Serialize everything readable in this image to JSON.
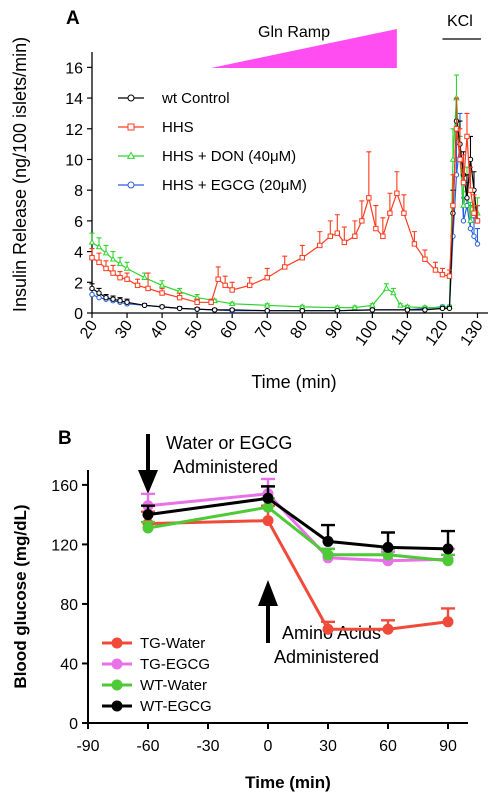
{
  "panels": [
    {
      "label": "A",
      "ramp_label": "Gln Ramp",
      "kcl_label": "KCl",
      "ramp_color": "#ff4df2",
      "chart_data": {
        "type": "line",
        "title": "",
        "xlabel": "Time (min)",
        "ylabel": "Insulin Release (ng/100 islets/min)",
        "xlim": [
          20,
          133
        ],
        "ylim": [
          0,
          17
        ],
        "xticks": [
          20,
          30,
          40,
          50,
          60,
          70,
          80,
          90,
          100,
          110,
          120,
          130
        ],
        "yticks": [
          0,
          2,
          4,
          6,
          8,
          10,
          12,
          14,
          16
        ],
        "grid": false,
        "legend_position": "top-left",
        "annotations": {
          "gln_ramp": {
            "start": 54,
            "end": 107
          },
          "kcl": {
            "start": 120,
            "end": 131
          }
        },
        "series": [
          {
            "name": "wt Control",
            "color": "#000000",
            "marker": "circle",
            "x": [
              20,
              22,
              24,
              26,
              28,
              30,
              35,
              40,
              45,
              50,
              55,
              60,
              70,
              80,
              90,
              100,
              110,
              115,
              120,
              122,
              123,
              124,
              125,
              126,
              127,
              128,
              129,
              130
            ],
            "y": [
              1.6,
              1.3,
              1.0,
              0.9,
              0.8,
              0.7,
              0.5,
              0.4,
              0.3,
              0.25,
              0.2,
              0.2,
              0.15,
              0.15,
              0.15,
              0.2,
              0.2,
              0.2,
              0.3,
              0.3,
              6.5,
              12.5,
              11,
              9,
              7.5,
              10,
              8,
              6
            ],
            "err": [
              0.3,
              0.3,
              0.2,
              0.2,
              0.2,
              0.2,
              0.1,
              0.1,
              0.1,
              0.1,
              0.1,
              0.1,
              0.05,
              0.05,
              0.05,
              0.1,
              0.1,
              0.1,
              0.1,
              0.1,
              1.5,
              1.5,
              1.5,
              1.5,
              1.5,
              1.5,
              1.2,
              1.0
            ]
          },
          {
            "name": "HHS",
            "color": "#ff3b1f",
            "marker": "square",
            "x": [
              20,
              22,
              24,
              26,
              28,
              30,
              33,
              36,
              40,
              45,
              50,
              54,
              56,
              58,
              60,
              65,
              70,
              75,
              80,
              85,
              88,
              90,
              92,
              95,
              97,
              99,
              101,
              103,
              105,
              107,
              109,
              112,
              115,
              118,
              120,
              122,
              123,
              124,
              125,
              126,
              127,
              128,
              129,
              130
            ],
            "y": [
              3.6,
              3.3,
              2.9,
              2.6,
              2.3,
              2.2,
              1.8,
              1.6,
              1.3,
              1.0,
              0.7,
              0.7,
              2.2,
              1.8,
              1.5,
              1.8,
              2.3,
              3.0,
              3.6,
              4.4,
              5.0,
              5.2,
              4.6,
              5.0,
              6.0,
              7.5,
              5.5,
              5.0,
              6.5,
              7.8,
              6.5,
              4.5,
              3.5,
              2.8,
              2.5,
              2.4,
              7.0,
              12.0,
              10.0,
              8.5,
              11.5,
              8.0,
              6.5,
              6.0
            ],
            "err": [
              0.6,
              0.6,
              0.5,
              0.5,
              0.4,
              0.4,
              0.4,
              1.0,
              0.3,
              0.3,
              0.2,
              0.2,
              0.8,
              0.6,
              0.5,
              0.5,
              0.6,
              0.7,
              0.8,
              0.9,
              1.0,
              1.2,
              1.0,
              1.0,
              1.3,
              3.0,
              1.5,
              1.2,
              1.3,
              1.4,
              1.2,
              0.8,
              0.6,
              0.5,
              0.4,
              0.4,
              2.0,
              2.0,
              2.0,
              1.8,
              1.5,
              1.5,
              1.2,
              1.0
            ]
          },
          {
            "name": "HHS + DON (40μM)",
            "color": "#2fd62f",
            "marker": "triangle",
            "x": [
              20,
              22,
              24,
              26,
              28,
              30,
              35,
              40,
              45,
              50,
              55,
              60,
              70,
              80,
              90,
              95,
              100,
              104,
              106,
              108,
              110,
              115,
              120,
              122,
              123,
              124,
              125,
              126,
              127,
              128,
              129,
              130
            ],
            "y": [
              4.6,
              4.3,
              3.9,
              3.5,
              3.2,
              2.9,
              2.3,
              1.8,
              1.4,
              1.0,
              0.8,
              0.6,
              0.5,
              0.4,
              0.35,
              0.35,
              0.5,
              1.6,
              1.3,
              0.5,
              0.4,
              0.35,
              0.35,
              0.4,
              10.0,
              14.0,
              10.0,
              7.0,
              8.0,
              6.0,
              7.0,
              6.5
            ],
            "err": [
              0.6,
              0.6,
              0.5,
              0.5,
              0.4,
              0.4,
              0.3,
              0.3,
              0.2,
              0.2,
              0.1,
              0.1,
              0.1,
              0.1,
              0.1,
              0.1,
              0.1,
              0.3,
              0.3,
              0.1,
              0.1,
              0.1,
              0.1,
              0.1,
              2.0,
              1.5,
              1.5,
              1.5,
              1.5,
              1.2,
              1.0,
              1.0
            ]
          },
          {
            "name": "HHS + EGCG (20μM)",
            "color": "#2a5fe0",
            "marker": "circle",
            "x": [
              20,
              22,
              24,
              26,
              28,
              30,
              35,
              40,
              45,
              50,
              55,
              60,
              70,
              80,
              90,
              100,
              110,
              115,
              120,
              122,
              123,
              124,
              125,
              126,
              127,
              128,
              129,
              130
            ],
            "y": [
              1.2,
              1.0,
              0.9,
              0.8,
              0.7,
              0.6,
              0.5,
              0.4,
              0.3,
              0.25,
              0.2,
              0.15,
              0.15,
              0.15,
              0.15,
              0.2,
              0.2,
              0.3,
              0.4,
              0.4,
              5.0,
              9.0,
              11.0,
              6.0,
              7.0,
              5.5,
              5.0,
              4.5
            ],
            "err": [
              0.3,
              0.2,
              0.2,
              0.2,
              0.2,
              0.2,
              0.1,
              0.1,
              0.1,
              0.1,
              0.05,
              0.05,
              0.05,
              0.05,
              0.05,
              0.1,
              0.1,
              0.1,
              0.1,
              0.1,
              2.0,
              3.0,
              2.0,
              1.5,
              1.5,
              1.5,
              1.2,
              1.0
            ]
          }
        ]
      }
    },
    {
      "label": "B",
      "annotation_top": "Water or EGCG\nAdministered",
      "annotation_bottom": "Amino Acids\nAdministered",
      "chart_data": {
        "type": "line",
        "title": "",
        "xlabel": "Time (min)",
        "ylabel": "Blood glucose (mg/dL)",
        "xlim": [
          -90,
          100
        ],
        "ylim": [
          0,
          170
        ],
        "xticks": [
          -90,
          -60,
          -30,
          0,
          30,
          60,
          90
        ],
        "yticks": [
          0,
          40,
          80,
          120,
          160
        ],
        "grid": false,
        "legend_position": "bottom-left",
        "x": [
          -60,
          0,
          30,
          60,
          90
        ],
        "series": [
          {
            "name": "TG-Water",
            "color": "#f04a3a",
            "values": [
              134,
              136,
              63,
              63,
              68
            ],
            "err": [
              8,
              10,
              5,
              6,
              9
            ]
          },
          {
            "name": "TG-EGCG",
            "color": "#e872e8",
            "values": [
              146,
              154,
              111,
              109,
              110
            ],
            "err": [
              8,
              10,
              6,
              6,
              7
            ]
          },
          {
            "name": "WT-Water",
            "color": "#4dca36",
            "values": [
              131,
              145,
              113,
              113,
              109
            ],
            "err": [
              4,
              6,
              4,
              4,
              4
            ]
          },
          {
            "name": "WT-EGCG",
            "color": "#000000",
            "values": [
              140,
              151,
              122,
              118,
              117
            ],
            "err": [
              6,
              8,
              11,
              10,
              12
            ]
          }
        ]
      }
    }
  ]
}
